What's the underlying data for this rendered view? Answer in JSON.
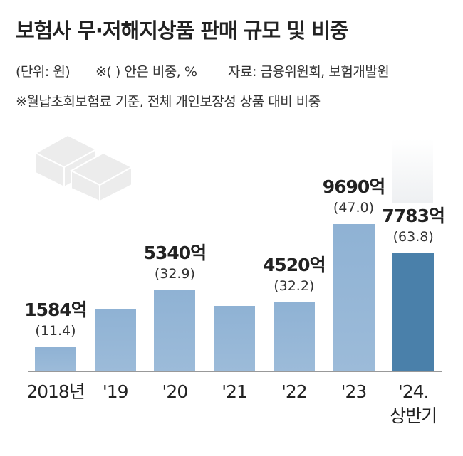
{
  "chart_data": {
    "type": "bar",
    "title": "보험사 무·저해지상품 판매 규모 및 비중",
    "unit_note": "(단위: 원)",
    "share_note": "※( ) 안은 비중, %",
    "source": "자료: 금융위원회, 보험개발원",
    "basis_note": "※월납초회보험료 기준, 전체 개인보장성 상품 대비 비중",
    "categories": [
      "2018년",
      "'19",
      "'20",
      "'21",
      "'22",
      "'23",
      "'24.\n상반기"
    ],
    "values": [
      1584,
      4080,
      5340,
      4310,
      4520,
      9690,
      7783
    ],
    "value_labels": [
      "1584억",
      null,
      "5340억",
      null,
      "4520억",
      "9690억",
      "7783억"
    ],
    "share_labels": [
      "(11.4)",
      null,
      "(32.9)",
      null,
      "(32.2)",
      "(47.0)",
      "(63.8)"
    ],
    "colors": [
      "#8fb2d4",
      "#8fb2d4",
      "#8fb2d4",
      "#8fb2d4",
      "#8fb2d4",
      "#8fb2d4",
      "#4a80aa"
    ]
  }
}
